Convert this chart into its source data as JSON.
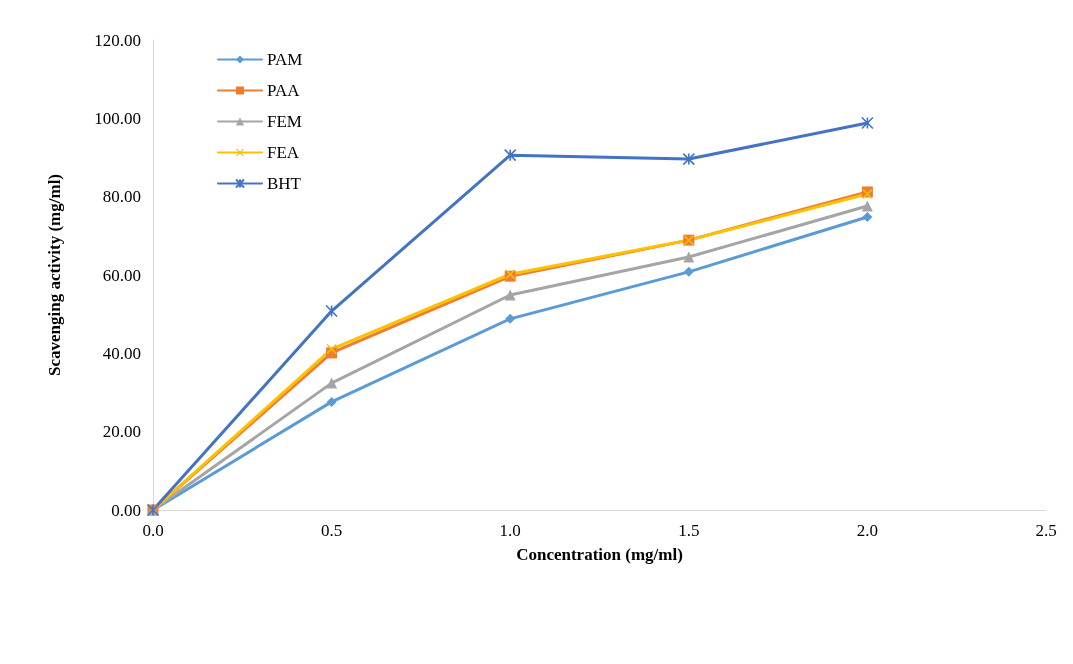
{
  "chart_data": {
    "type": "line",
    "xlabel": "Concentration (mg/ml)",
    "ylabel": "Scavenging activity (mg/ml)",
    "x": [
      0,
      0.5,
      1.0,
      1.5,
      2.0
    ],
    "xlim": [
      0,
      2.5
    ],
    "xticks": [
      {
        "value": 0,
        "label": "0.0"
      },
      {
        "value": 0.5,
        "label": "0.5"
      },
      {
        "value": 1,
        "label": "1.0"
      },
      {
        "value": 1.5,
        "label": "1.5"
      },
      {
        "value": 2,
        "label": "2.0"
      },
      {
        "value": 2.5,
        "label": "2.5"
      }
    ],
    "ylim": [
      0,
      120
    ],
    "yticks": [
      {
        "value": 0,
        "label": "0.00"
      },
      {
        "value": 20,
        "label": "20.00"
      },
      {
        "value": 40,
        "label": "40.00"
      },
      {
        "value": 60,
        "label": "60.00"
      },
      {
        "value": 80,
        "label": "80.00"
      },
      {
        "value": 100,
        "label": "100.00"
      },
      {
        "value": 120,
        "label": "120.00"
      }
    ],
    "grid": false,
    "legend": "top left",
    "line_style": "solid",
    "series": [
      {
        "name": "PAM",
        "color": "#5b9bd5",
        "marker": "diamond",
        "values": [
          0,
          27.6,
          48.8,
          60.8,
          74.8
        ]
      },
      {
        "name": "PAA",
        "color": "#ed7d31",
        "marker": "square",
        "values": [
          0,
          40.1,
          59.7,
          68.9,
          81.2
        ]
      },
      {
        "name": "FEM",
        "color": "#a5a5a5",
        "marker": "triangle",
        "values": [
          0,
          32.4,
          54.9,
          64.6,
          77.6
        ]
      },
      {
        "name": "FEA",
        "color": "#ffc000",
        "marker": "cross",
        "values": [
          0,
          41.1,
          60.2,
          68.9,
          80.7
        ]
      },
      {
        "name": "BHT",
        "color": "#4472c4",
        "marker": "star",
        "values": [
          0,
          50.8,
          90.6,
          89.6,
          98.8
        ]
      }
    ]
  }
}
